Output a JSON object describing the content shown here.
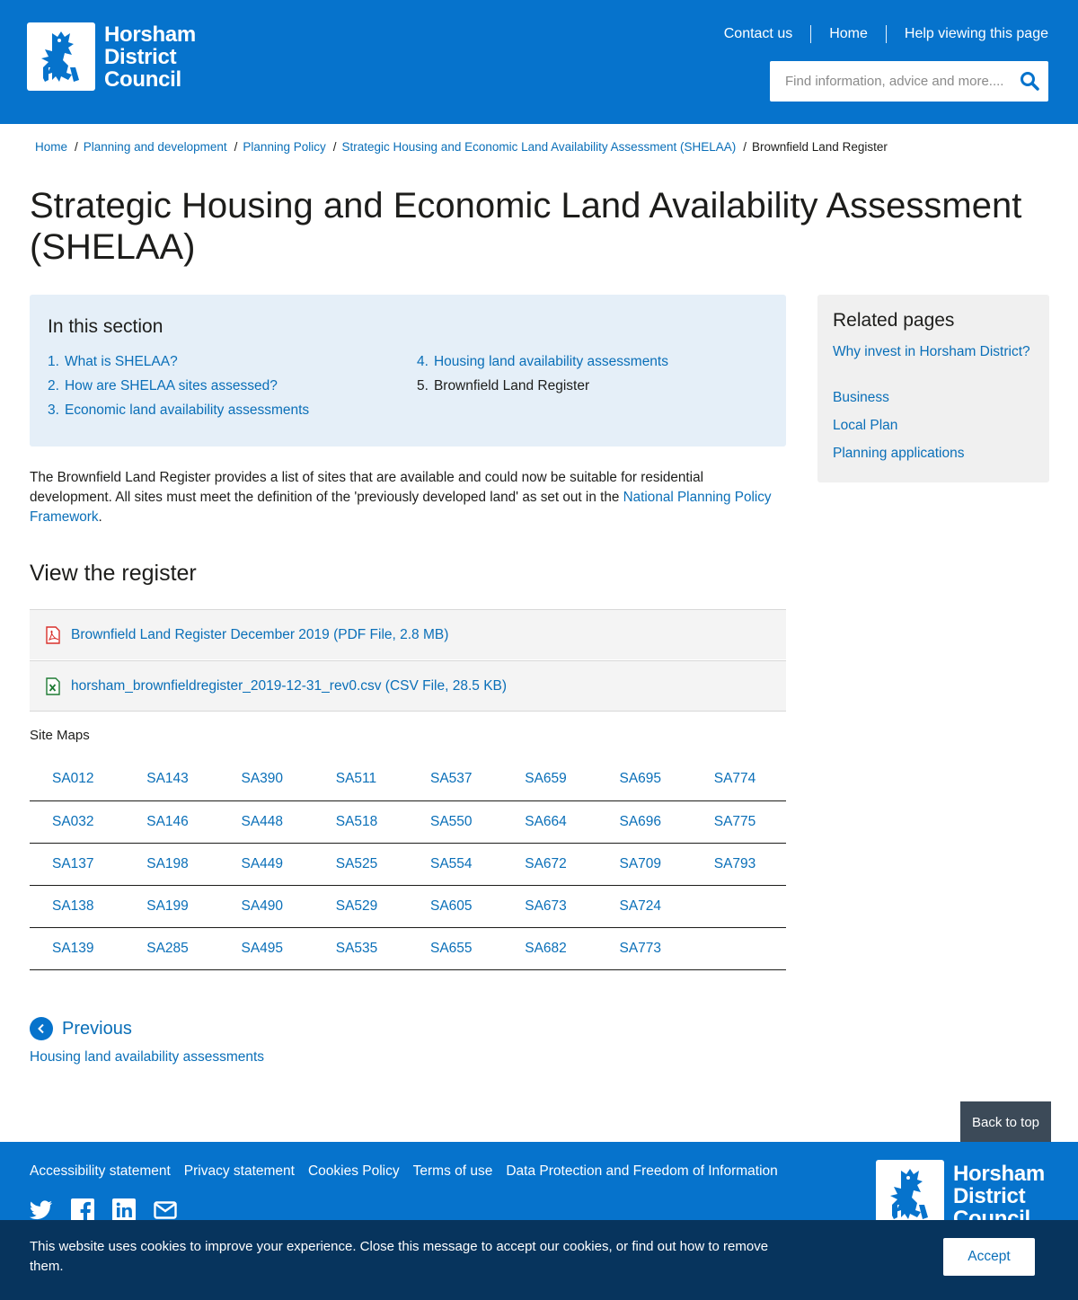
{
  "header": {
    "logo_lines": [
      "Horsham",
      "District",
      "Council"
    ],
    "nav": [
      "Contact us",
      "Home",
      "Help viewing this page"
    ],
    "search_placeholder": "Find information, advice and more....",
    "bg_color": "#0673cc"
  },
  "breadcrumb": {
    "links": [
      "Home",
      "Planning and development",
      "Planning Policy",
      "Strategic Housing and Economic Land Availability Assessment (SHELAA)"
    ],
    "current": "Brownfield Land Register"
  },
  "page_title": "Strategic Housing and Economic Land Availability Assessment (SHELAA)",
  "in_this_section": {
    "heading": "In this section",
    "items": [
      {
        "num": "1.",
        "label": "What is SHELAA?"
      },
      {
        "num": "2.",
        "label": "How are SHELAA sites assessed?"
      },
      {
        "num": "3.",
        "label": "Economic land availability assessments"
      },
      {
        "num": "4.",
        "label": "Housing land availability assessments"
      },
      {
        "num": "5.",
        "label": "Brownfield Land Register"
      }
    ]
  },
  "related": {
    "heading": "Related pages",
    "links": [
      "Why invest in Horsham District?",
      "Business",
      "Local Plan",
      "Planning applications"
    ]
  },
  "intro": {
    "text": "The Brownfield Land Register provides a list of sites that are available and could now be suitable for residential development. All sites must meet the definition of the 'previously developed land' as set out in the ",
    "link": "National Planning Policy Framework",
    "end": "."
  },
  "view_heading": "View the register",
  "files": [
    {
      "label": "Brownfield Land Register December 2019 (PDF File, 2.8 MB)",
      "icon": "pdf-icon"
    },
    {
      "label": "horsham_brownfieldregister_2019-12-31_rev0.csv (CSV File, 28.5 KB)",
      "icon": "excel-icon"
    }
  ],
  "site_maps_label": "Site Maps",
  "site_maps": [
    [
      "SA012",
      "SA143",
      "SA390",
      "SA511",
      "SA537",
      "SA659",
      "SA695",
      "SA774"
    ],
    [
      "SA032",
      "SA146",
      "SA448",
      "SA518",
      "SA550",
      "SA664",
      "SA696",
      "SA775"
    ],
    [
      "SA137",
      "SA198",
      "SA449",
      "SA525",
      "SA554",
      "SA672",
      "SA709",
      "SA793"
    ],
    [
      "SA138",
      "SA199",
      "SA490",
      "SA529",
      "SA605",
      "SA673",
      "SA724",
      ""
    ],
    [
      "SA139",
      "SA285",
      "SA495",
      "SA535",
      "SA655",
      "SA682",
      "SA773",
      ""
    ]
  ],
  "previous": {
    "label": "Previous",
    "page": "Housing land availability assessments"
  },
  "back_to_top": "Back to top",
  "footer": {
    "links": [
      "Accessibility statement",
      "Privacy statement",
      "Cookies Policy",
      "Terms of use",
      "Data Protection and Freedom of Information"
    ],
    "social": [
      "twitter-icon",
      "facebook-icon",
      "linkedin-icon",
      "email-icon"
    ]
  },
  "cookie": {
    "text": "This website uses cookies to improve your experience. Close this message to accept our cookies, or find out how to remove them.",
    "accept": "Accept"
  }
}
